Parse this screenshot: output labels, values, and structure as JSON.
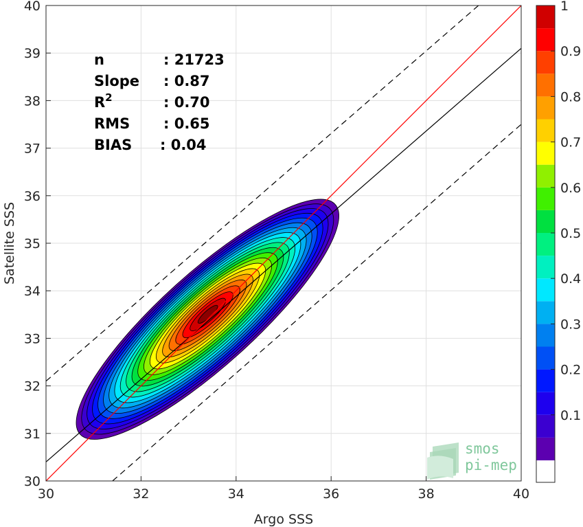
{
  "chart_data": {
    "type": "contour",
    "title": "",
    "xlabel": "Argo SSS",
    "ylabel": "Satellite SSS",
    "xlim": [
      30,
      40
    ],
    "ylim": [
      30,
      40
    ],
    "x_ticks": [
      "30",
      "32",
      "34",
      "36",
      "38",
      "40"
    ],
    "y_ticks": [
      "30",
      "31",
      "32",
      "33",
      "34",
      "35",
      "36",
      "37",
      "38",
      "39",
      "40"
    ],
    "grid": true,
    "stats": [
      {
        "label": "n",
        "value": ": 21723"
      },
      {
        "label": "Slope",
        "value": ": 0.87"
      },
      {
        "label": "R",
        "sup": "2",
        "value": ": 0.70"
      },
      {
        "label": "RMS",
        "value": ": 0.65"
      },
      {
        "label": "BIAS",
        "value": ": 0.04"
      }
    ],
    "lines": {
      "one_to_one": {
        "color": "#ff0000",
        "points": [
          [
            30,
            30
          ],
          [
            40,
            40
          ]
        ]
      },
      "regression": {
        "color": "#000000",
        "points": [
          [
            30,
            30.4
          ],
          [
            40,
            39.1
          ]
        ]
      },
      "upper_bound": {
        "style": "dashed",
        "points": [
          [
            30,
            32.1
          ],
          [
            39.1,
            40
          ]
        ]
      },
      "lower_bound": {
        "style": "dashed",
        "points": [
          [
            31.4,
            30
          ],
          [
            40,
            37.5
          ]
        ]
      }
    },
    "density_center": [
      33.4,
      33.4
    ],
    "colorbar": {
      "range": [
        0,
        1
      ],
      "ticks": [
        "0.1",
        "0.2",
        "0.3",
        "0.4",
        "0.5",
        "0.6",
        "0.7",
        "0.8",
        "0.9",
        "1"
      ],
      "tick_values": [
        0.1,
        0.2,
        0.3,
        0.4,
        0.5,
        0.6,
        0.7,
        0.8,
        0.9,
        1.0
      ],
      "levels": [
        0,
        0.05,
        0.1,
        0.15,
        0.2,
        0.25,
        0.3,
        0.35,
        0.4,
        0.45,
        0.5,
        0.55,
        0.6,
        0.65,
        0.7,
        0.75,
        0.8,
        0.85,
        0.9,
        0.95,
        1.0
      ],
      "colors": [
        "#ffffff",
        "#5c00b0",
        "#3b00d0",
        "#1e00ee",
        "#0018ff",
        "#0050f5",
        "#0080f0",
        "#00b0f2",
        "#00e8ff",
        "#00f0c0",
        "#00f080",
        "#00e040",
        "#40f000",
        "#90f000",
        "#ffff00",
        "#ffd000",
        "#ffa000",
        "#ff7000",
        "#ff4000",
        "#ff0000",
        "#d00000",
        "#8b0000"
      ]
    }
  },
  "logo": {
    "line1": "smos",
    "line2": "pi-mep"
  }
}
